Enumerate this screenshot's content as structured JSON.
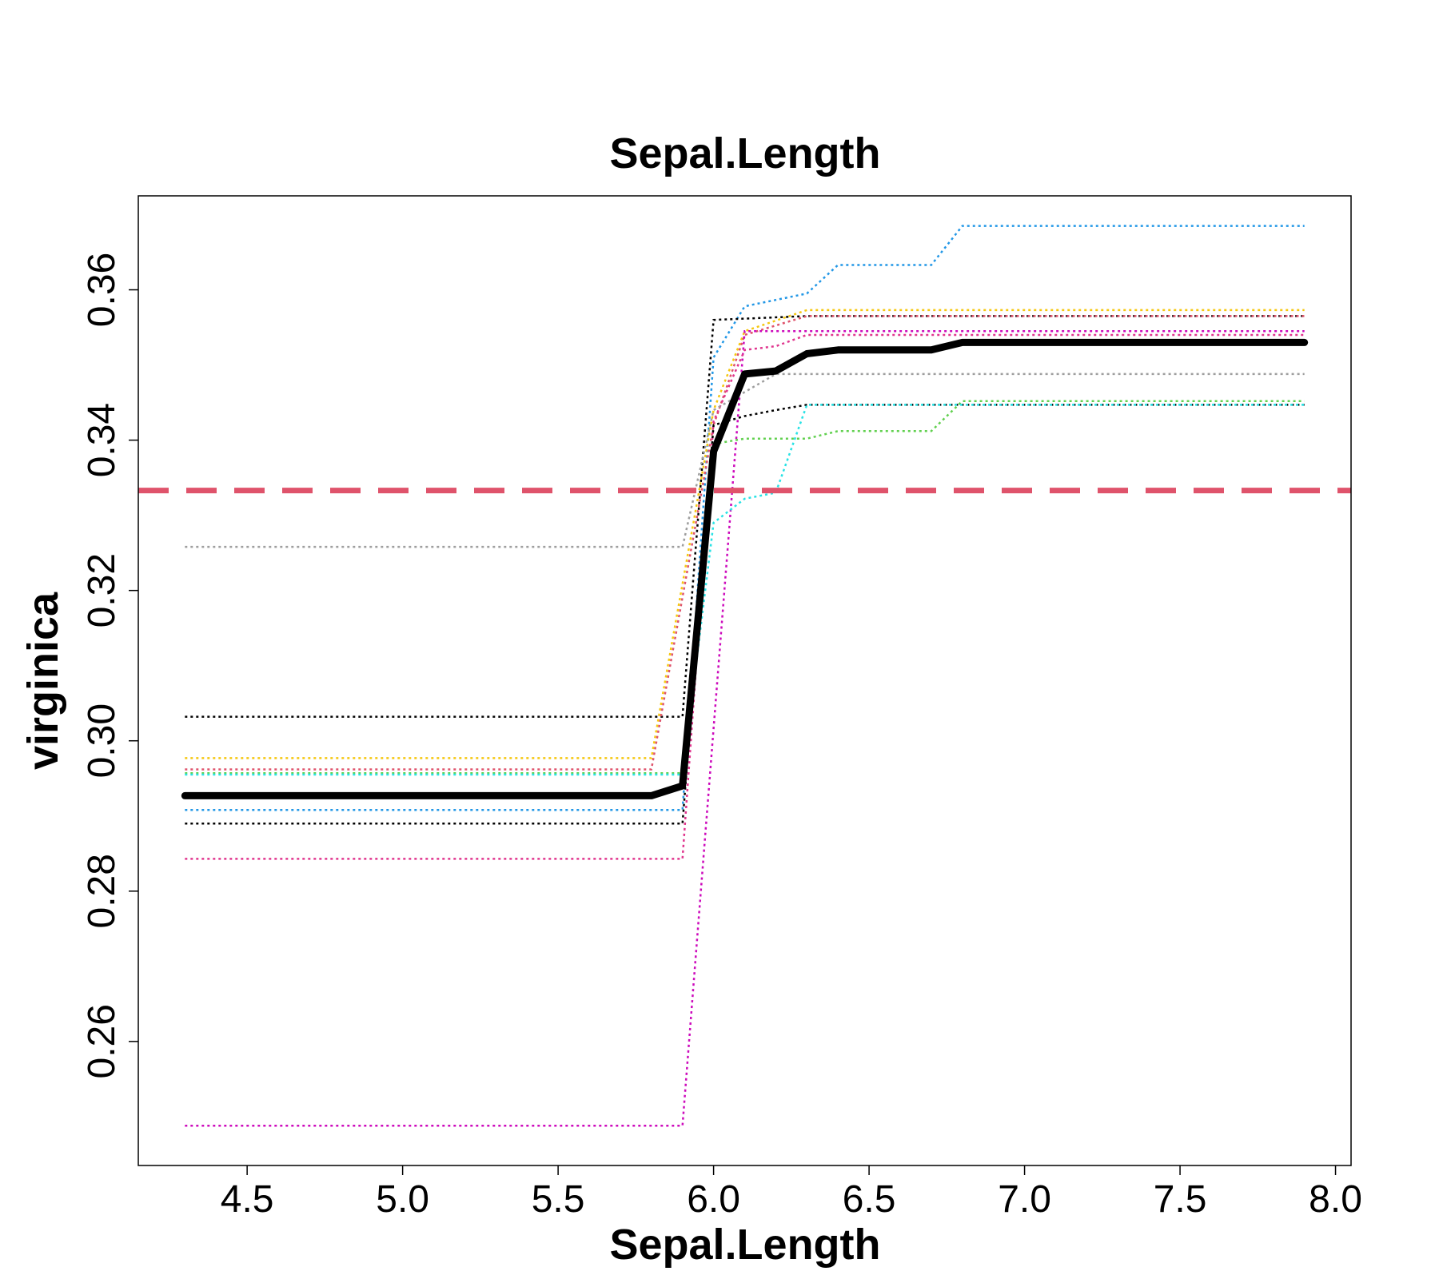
{
  "chart_data": {
    "type": "line",
    "title": "Sepal.Length",
    "xlabel": "Sepal.Length",
    "ylabel": "virginica",
    "xlim": [
      4.15,
      8.05
    ],
    "ylim": [
      0.2435,
      0.3725
    ],
    "xticks": [
      {
        "value": 4.5,
        "label": "4.5"
      },
      {
        "value": 5.0,
        "label": "5.0"
      },
      {
        "value": 5.5,
        "label": "5.5"
      },
      {
        "value": 6.0,
        "label": "6.0"
      },
      {
        "value": 6.5,
        "label": "6.5"
      },
      {
        "value": 7.0,
        "label": "7.0"
      },
      {
        "value": 7.5,
        "label": "7.5"
      },
      {
        "value": 8.0,
        "label": "8.0"
      }
    ],
    "yticks": [
      {
        "value": 0.26,
        "label": "0.26"
      },
      {
        "value": 0.28,
        "label": "0.28"
      },
      {
        "value": 0.3,
        "label": "0.30"
      },
      {
        "value": 0.32,
        "label": "0.32"
      },
      {
        "value": 0.34,
        "label": "0.34"
      },
      {
        "value": 0.36,
        "label": "0.36"
      }
    ],
    "reference_line": {
      "y": 0.3333,
      "color": "#df536b"
    },
    "average_series": {
      "color": "#000000",
      "x": [
        4.3,
        5.8,
        5.9,
        6.0,
        6.1,
        6.2,
        6.3,
        6.4,
        6.7,
        6.8,
        7.9
      ],
      "y": [
        0.2927,
        0.2927,
        0.294,
        0.3385,
        0.3488,
        0.3492,
        0.3515,
        0.352,
        0.352,
        0.353,
        0.353
      ]
    },
    "series": [
      {
        "color": "#2297e6",
        "x": [
          4.3,
          5.9,
          6.0,
          6.1,
          6.3,
          6.4,
          6.7,
          6.8,
          7.9
        ],
        "y": [
          0.2908,
          0.2908,
          0.351,
          0.3578,
          0.3595,
          0.3633,
          0.3633,
          0.3685,
          0.3685
        ]
      },
      {
        "color": "#f5c710",
        "x": [
          4.3,
          5.8,
          6.0,
          6.1,
          6.3,
          7.9
        ],
        "y": [
          0.2977,
          0.2977,
          0.344,
          0.3545,
          0.3573,
          0.3573
        ]
      },
      {
        "color": "#000000",
        "x": [
          4.3,
          5.9,
          6.0,
          6.3,
          7.9
        ],
        "y": [
          0.3032,
          0.3032,
          0.356,
          0.3565,
          0.3565
        ]
      },
      {
        "color": "#df536b",
        "x": [
          4.3,
          5.8,
          6.0,
          6.1,
          6.3,
          7.9
        ],
        "y": [
          0.2962,
          0.2962,
          0.342,
          0.354,
          0.3565,
          0.3565
        ]
      },
      {
        "color": "#cd0bbc",
        "x": [
          4.3,
          5.9,
          6.1,
          6.3,
          7.9
        ],
        "y": [
          0.2488,
          0.2488,
          0.3545,
          0.3545,
          0.3545
        ]
      },
      {
        "color": "#e0368e",
        "x": [
          4.3,
          5.9,
          6.0,
          6.1,
          6.2,
          6.3,
          7.9
        ],
        "y": [
          0.2843,
          0.2843,
          0.3425,
          0.352,
          0.3525,
          0.354,
          0.354
        ]
      },
      {
        "color": "#9e9e9e",
        "x": [
          4.3,
          5.9,
          6.0,
          6.2,
          7.9
        ],
        "y": [
          0.3258,
          0.3258,
          0.344,
          0.3488,
          0.3488
        ]
      },
      {
        "color": "#000000",
        "x": [
          4.3,
          5.9,
          6.0,
          6.1,
          6.2,
          6.3,
          7.9
        ],
        "y": [
          0.289,
          0.289,
          0.342,
          0.3432,
          0.344,
          0.3447,
          0.3447
        ]
      },
      {
        "color": "#61d04f",
        "x": [
          4.3,
          5.9,
          6.0,
          6.1,
          6.3,
          6.4,
          6.7,
          6.8,
          7.9
        ],
        "y": [
          0.2957,
          0.2957,
          0.3395,
          0.3402,
          0.3402,
          0.3412,
          0.3412,
          0.3452,
          0.3452
        ]
      },
      {
        "color": "#28e2e5",
        "x": [
          4.3,
          5.9,
          6.0,
          6.1,
          6.2,
          6.3,
          7.9
        ],
        "y": [
          0.2955,
          0.2955,
          0.329,
          0.3322,
          0.333,
          0.3447,
          0.3447
        ]
      }
    ]
  }
}
